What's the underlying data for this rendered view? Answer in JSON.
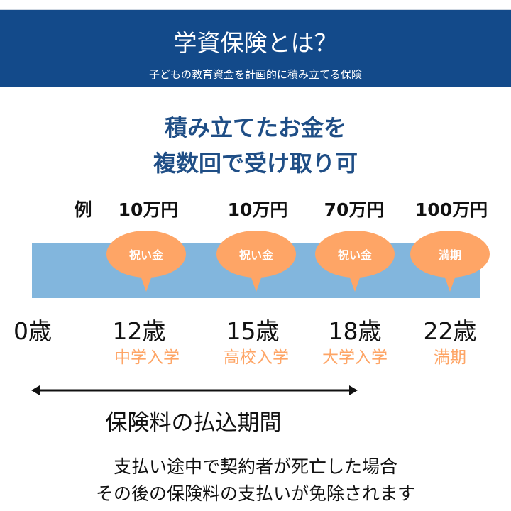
{
  "header": {
    "title": "学資保険とは？",
    "subtitle": "子どもの教育資金を計画的に積み立てる保険",
    "color": "#134a8a"
  },
  "headline": {
    "line1": "積み立てたお金を",
    "line2": "複数回で受け取り可"
  },
  "example_label": "例",
  "amounts": [
    "10万円",
    "10万円",
    "70万円",
    "100万円"
  ],
  "bubbles": [
    "祝い金",
    "祝い金",
    "祝い金",
    "満期"
  ],
  "ages": [
    "0歳",
    "12歳",
    "15歳",
    "18歳",
    "22歳"
  ],
  "events": [
    "中学入学",
    "高校入学",
    "大学入学",
    "満期"
  ],
  "period_label": "保険料の払込期間",
  "note": {
    "line1": "支払い途中で契約者が死亡した場合",
    "line2": "その後の保険料の支払いが免除されます"
  },
  "colors": {
    "bar": "#82b6dd",
    "bubble": "#fea566",
    "headline": "#1f4e86"
  }
}
